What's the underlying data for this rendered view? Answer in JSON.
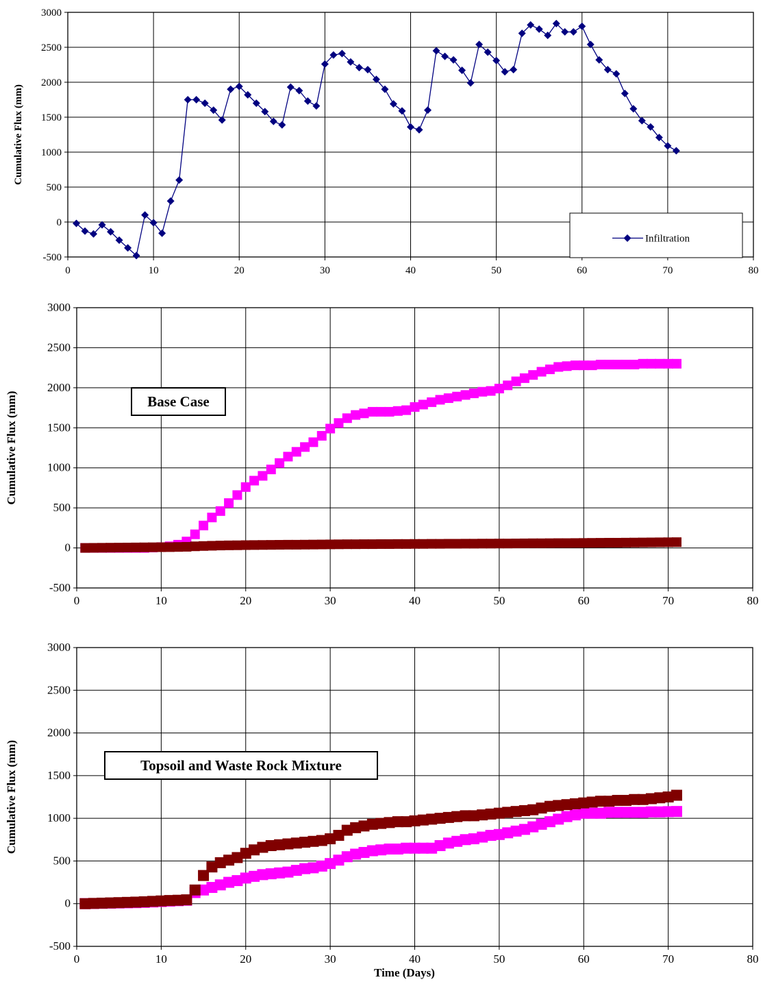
{
  "colors": {
    "infiltration": "#000080",
    "magenta": "#ff00ff",
    "maroon": "#800000"
  },
  "chart_data": [
    {
      "type": "line",
      "ylabel": "Cumulative Flux (mm)",
      "xlabel": "",
      "xlim": [
        0,
        80
      ],
      "ylim": [
        -500,
        3000
      ],
      "xticks": [
        "0",
        "10",
        "20",
        "30",
        "40",
        "50",
        "60",
        "70",
        "80"
      ],
      "yticks": [
        "-500",
        "0",
        "500",
        "1000",
        "1500",
        "2000",
        "2500",
        "3000"
      ],
      "grid": true,
      "legend_position": "bottom-right",
      "annotation": "",
      "series": [
        {
          "name": "Infiltration",
          "color": "#000080",
          "marker": "diamond",
          "x": [
            1,
            2,
            3,
            4,
            5,
            6,
            7,
            8,
            9,
            10,
            11,
            12,
            13,
            14,
            15,
            16,
            17,
            18,
            19,
            20,
            21,
            22,
            23,
            24,
            25,
            26,
            27,
            28,
            29,
            30,
            31,
            32,
            33,
            34,
            35,
            36,
            37,
            38,
            39,
            40,
            41,
            42,
            43,
            44,
            45,
            46,
            47,
            48,
            49,
            50,
            51,
            52,
            53,
            54,
            55,
            56,
            57,
            58,
            59,
            60,
            61,
            62,
            63,
            64,
            65,
            66,
            67,
            68,
            69,
            70,
            71
          ],
          "y": [
            -20,
            -130,
            -170,
            -40,
            -140,
            -260,
            -370,
            -480,
            100,
            -10,
            -160,
            300,
            600,
            1750,
            1750,
            1700,
            1600,
            1460,
            1900,
            1940,
            1820,
            1700,
            1580,
            1440,
            1390,
            1930,
            1880,
            1730,
            1660,
            2260,
            2390,
            2410,
            2290,
            2210,
            2180,
            2040,
            1900,
            1690,
            1590,
            1360,
            1320,
            1600,
            2450,
            2370,
            2320,
            2170,
            1990,
            2540,
            2430,
            2310,
            2150,
            2180,
            2700,
            2820,
            2760,
            2670,
            2840,
            2720,
            2720,
            2800,
            2540,
            2320,
            2180,
            2120,
            1840,
            1620,
            1450,
            1360,
            1210,
            1090,
            1020
          ]
        }
      ]
    },
    {
      "type": "line",
      "ylabel": "Cumulative Flux (mm)",
      "xlabel": "",
      "xlim": [
        0,
        80
      ],
      "ylim": [
        -500,
        3000
      ],
      "xticks": [
        "0",
        "10",
        "20",
        "30",
        "40",
        "50",
        "60",
        "70",
        "80"
      ],
      "yticks": [
        "-500",
        "0",
        "500",
        "1000",
        "1500",
        "2000",
        "2500",
        "3000"
      ],
      "grid": true,
      "annotation": "Base Case",
      "series": [
        {
          "color": "#ff00ff",
          "marker": "square",
          "x": [
            1,
            2,
            3,
            4,
            5,
            6,
            7,
            8,
            9,
            10,
            11,
            12,
            13,
            14,
            15,
            16,
            17,
            18,
            19,
            20,
            21,
            22,
            23,
            24,
            25,
            26,
            27,
            28,
            29,
            30,
            31,
            32,
            33,
            34,
            35,
            36,
            37,
            38,
            39,
            40,
            41,
            42,
            43,
            44,
            45,
            46,
            47,
            48,
            49,
            50,
            51,
            52,
            53,
            54,
            55,
            56,
            57,
            58,
            59,
            60,
            61,
            62,
            63,
            64,
            65,
            66,
            67,
            68,
            69,
            70,
            71
          ],
          "y": [
            0,
            0,
            0,
            0,
            0,
            0,
            0,
            0,
            5,
            10,
            20,
            40,
            80,
            170,
            280,
            380,
            460,
            560,
            660,
            760,
            840,
            900,
            980,
            1060,
            1140,
            1200,
            1260,
            1320,
            1400,
            1490,
            1560,
            1620,
            1660,
            1680,
            1700,
            1700,
            1700,
            1710,
            1720,
            1760,
            1790,
            1820,
            1850,
            1870,
            1890,
            1910,
            1930,
            1950,
            1960,
            1990,
            2030,
            2080,
            2120,
            2160,
            2200,
            2230,
            2260,
            2270,
            2280,
            2280,
            2280,
            2290,
            2290,
            2290,
            2290,
            2290,
            2300,
            2300,
            2300,
            2300,
            2300
          ]
        },
        {
          "color": "#800000",
          "marker": "square",
          "x": [
            1,
            2,
            3,
            4,
            5,
            6,
            7,
            8,
            9,
            10,
            11,
            12,
            13,
            14,
            15,
            16,
            17,
            18,
            19,
            20,
            21,
            22,
            23,
            24,
            25,
            26,
            27,
            28,
            29,
            30,
            31,
            32,
            33,
            34,
            35,
            36,
            37,
            38,
            39,
            40,
            41,
            42,
            43,
            44,
            45,
            46,
            47,
            48,
            49,
            50,
            51,
            52,
            53,
            54,
            55,
            56,
            57,
            58,
            59,
            60,
            61,
            62,
            63,
            64,
            65,
            66,
            67,
            68,
            69,
            70,
            71
          ],
          "y": [
            0,
            1,
            2,
            3,
            4,
            5,
            6,
            7,
            8,
            9,
            10,
            12,
            14,
            20,
            24,
            27,
            30,
            32,
            33,
            35,
            36,
            37,
            38,
            39,
            40,
            40,
            41,
            42,
            43,
            44,
            45,
            46,
            46,
            47,
            47,
            48,
            48,
            49,
            49,
            50,
            50,
            51,
            51,
            52,
            52,
            53,
            53,
            54,
            54,
            55,
            55,
            56,
            57,
            58,
            58,
            59,
            60,
            60,
            61,
            62,
            63,
            64,
            65,
            65,
            66,
            67,
            68,
            69,
            70,
            71,
            72
          ]
        }
      ]
    },
    {
      "type": "line",
      "ylabel": "Cumulative Flux (mm)",
      "xlabel": "Time (Days)",
      "xlim": [
        0,
        80
      ],
      "ylim": [
        -500,
        3000
      ],
      "xticks": [
        "0",
        "10",
        "20",
        "30",
        "40",
        "50",
        "60",
        "70",
        "80"
      ],
      "yticks": [
        "-500",
        "0",
        "500",
        "1000",
        "1500",
        "2000",
        "2500",
        "3000"
      ],
      "grid": true,
      "annotation": "Topsoil and Waste Rock Mixture",
      "series": [
        {
          "color": "#ff00ff",
          "marker": "square",
          "x": [
            1,
            2,
            3,
            4,
            5,
            6,
            7,
            8,
            9,
            10,
            11,
            12,
            13,
            14,
            15,
            16,
            17,
            18,
            19,
            20,
            21,
            22,
            23,
            24,
            25,
            26,
            27,
            28,
            29,
            30,
            31,
            32,
            33,
            34,
            35,
            36,
            37,
            38,
            39,
            40,
            41,
            42,
            43,
            44,
            45,
            46,
            47,
            48,
            49,
            50,
            51,
            52,
            53,
            54,
            55,
            56,
            57,
            58,
            59,
            60,
            61,
            62,
            63,
            64,
            65,
            66,
            67,
            68,
            69,
            70,
            71
          ],
          "y": [
            0,
            2,
            4,
            6,
            8,
            10,
            12,
            15,
            20,
            25,
            30,
            35,
            40,
            130,
            160,
            190,
            220,
            250,
            270,
            300,
            320,
            340,
            350,
            360,
            370,
            390,
            410,
            420,
            440,
            470,
            510,
            550,
            580,
            600,
            620,
            630,
            640,
            640,
            650,
            650,
            650,
            650,
            680,
            710,
            730,
            750,
            760,
            780,
            800,
            810,
            830,
            850,
            870,
            900,
            930,
            960,
            990,
            1020,
            1040,
            1060,
            1060,
            1060,
            1070,
            1070,
            1070,
            1070,
            1070,
            1075,
            1075,
            1078,
            1080
          ]
        },
        {
          "color": "#800000",
          "marker": "square",
          "x": [
            1,
            2,
            3,
            4,
            5,
            6,
            7,
            8,
            9,
            10,
            11,
            12,
            13,
            14,
            15,
            16,
            17,
            18,
            19,
            20,
            21,
            22,
            23,
            24,
            25,
            26,
            27,
            28,
            29,
            30,
            31,
            32,
            33,
            34,
            35,
            36,
            37,
            38,
            39,
            40,
            41,
            42,
            43,
            44,
            45,
            46,
            47,
            48,
            49,
            50,
            51,
            52,
            53,
            54,
            55,
            56,
            57,
            58,
            59,
            60,
            61,
            62,
            63,
            64,
            65,
            66,
            67,
            68,
            69,
            70,
            71
          ],
          "y": [
            0,
            3,
            6,
            9,
            12,
            15,
            18,
            22,
            27,
            32,
            37,
            40,
            45,
            160,
            330,
            430,
            480,
            510,
            540,
            590,
            630,
            660,
            680,
            690,
            700,
            710,
            720,
            730,
            740,
            760,
            800,
            860,
            890,
            910,
            930,
            940,
            950,
            960,
            960,
            970,
            980,
            990,
            1000,
            1010,
            1020,
            1030,
            1030,
            1040,
            1050,
            1060,
            1070,
            1080,
            1090,
            1100,
            1120,
            1140,
            1150,
            1160,
            1170,
            1180,
            1190,
            1200,
            1200,
            1210,
            1210,
            1220,
            1220,
            1230,
            1240,
            1250,
            1270
          ]
        }
      ]
    }
  ]
}
